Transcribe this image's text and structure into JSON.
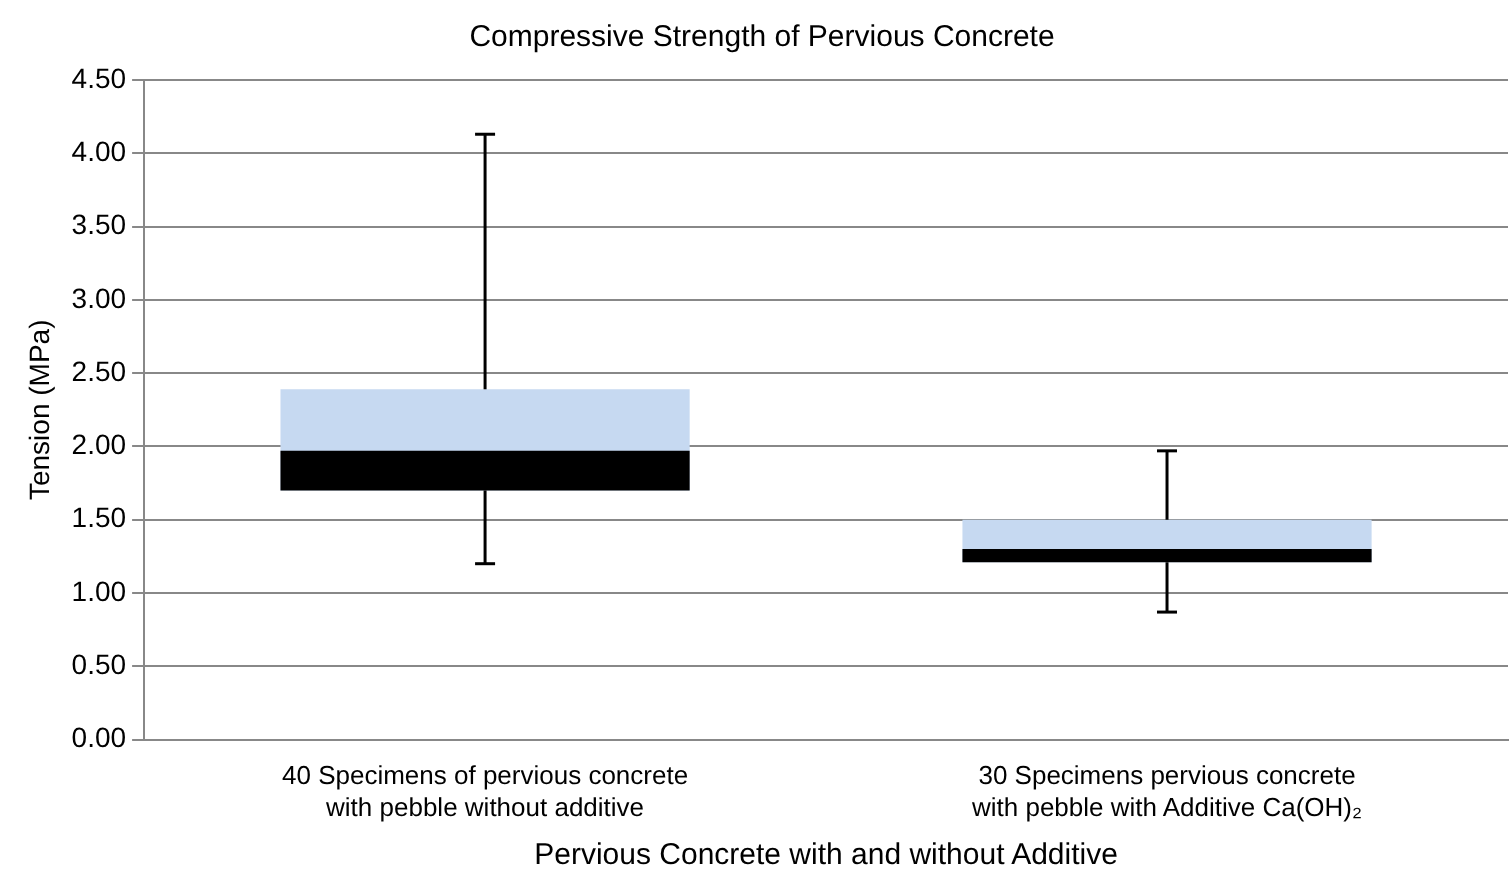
{
  "chart_data": {
    "type": "box",
    "title": "Compressive Strength of Pervious Concrete",
    "xlabel": "Pervious Concrete with and without Additive",
    "ylabel": "Tension (MPa)",
    "categories": [
      "40 Specimens of pervious concrete\nwith pebble without additive",
      "30 Specimens pervious concrete\nwith pebble with Additive Ca(OH)₂"
    ],
    "series": [
      {
        "color": "#c6d9f1",
        "boxes": [
          {
            "low": 1.2,
            "q1": 1.7,
            "median": 1.97,
            "q3": 2.39,
            "high": 4.13
          },
          {
            "low": 0.87,
            "q1": 1.21,
            "median": 1.3,
            "q3": 1.5,
            "high": 1.97
          }
        ]
      }
    ],
    "ylim": [
      0,
      4.5
    ],
    "yticks": [
      {
        "value": 0,
        "label": "0.00"
      },
      {
        "value": 0.5,
        "label": "0.50"
      },
      {
        "value": 1,
        "label": "1.00"
      },
      {
        "value": 1.5,
        "label": "1.50"
      },
      {
        "value": 2,
        "label": "2.00"
      },
      {
        "value": 2.5,
        "label": "2.50"
      },
      {
        "value": 3,
        "label": "3.00"
      },
      {
        "value": 3.5,
        "label": "3.50"
      },
      {
        "value": 4,
        "label": "4.00"
      },
      {
        "value": 4.5,
        "label": "4.50"
      }
    ],
    "grid": "y",
    "legend": false
  }
}
